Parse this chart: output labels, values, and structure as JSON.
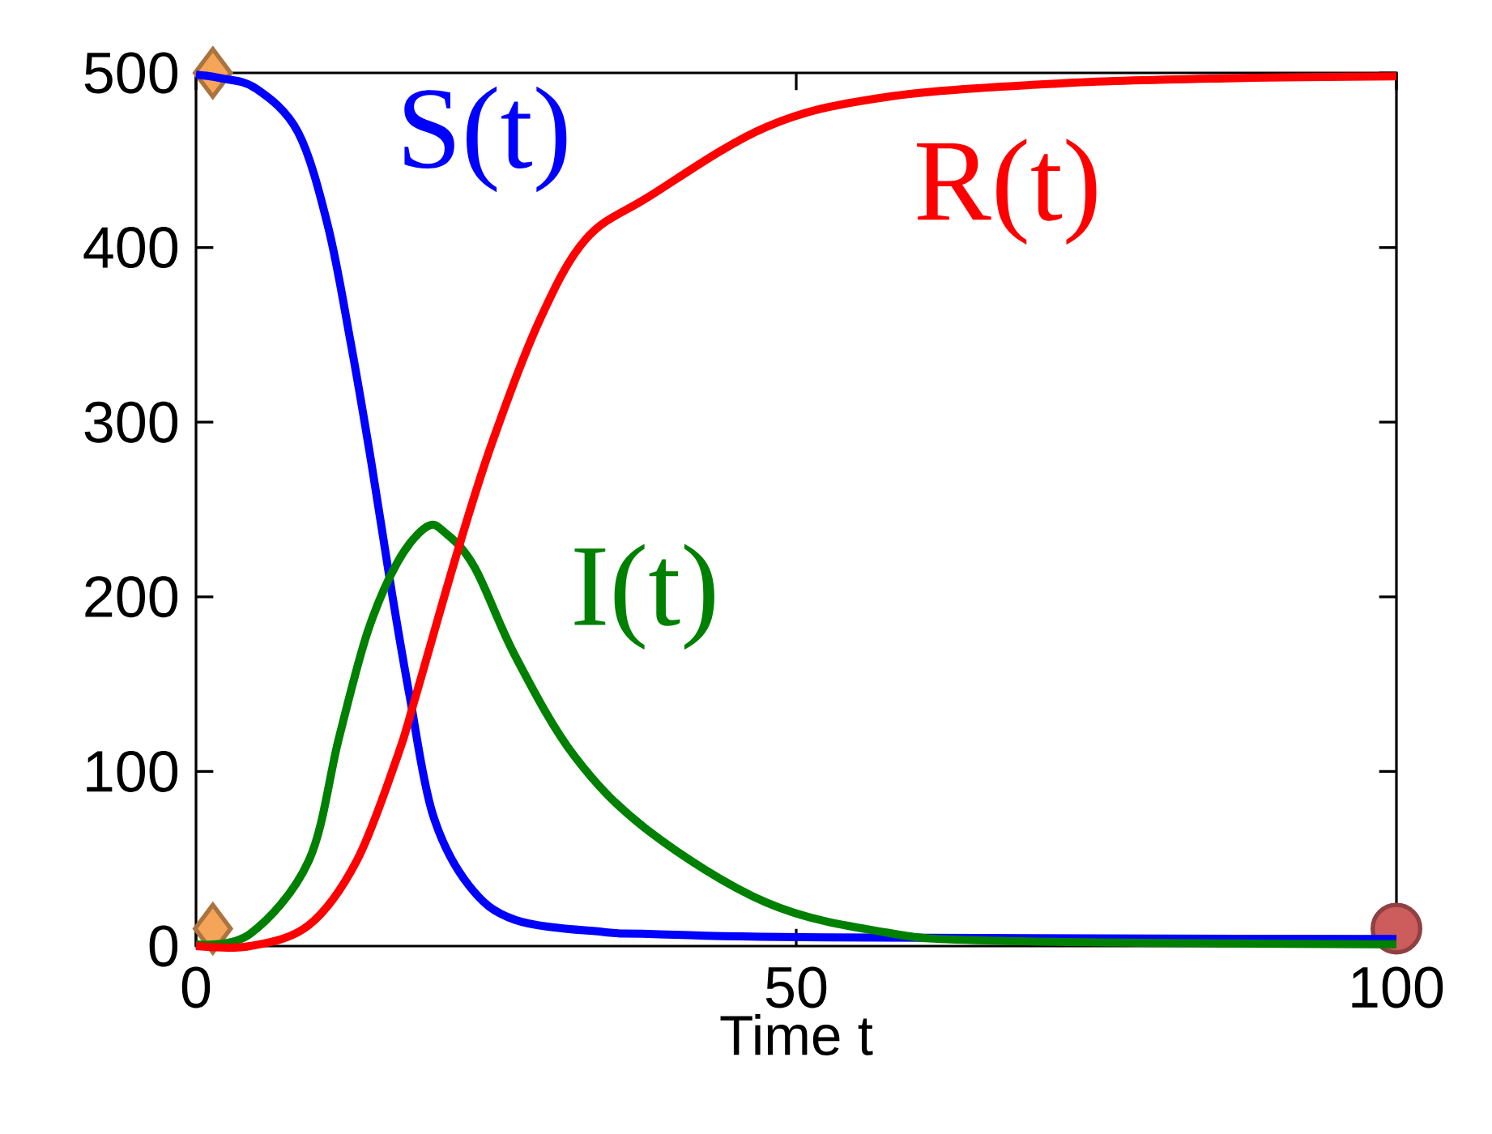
{
  "chart_data": {
    "type": "line",
    "xlabel": "Time t",
    "xlim": [
      0,
      100
    ],
    "ylim": [
      0,
      500
    ],
    "xticks": [
      0,
      50,
      100
    ],
    "yticks": [
      0,
      100,
      200,
      300,
      400,
      500
    ],
    "grid": false,
    "legend": false,
    "line_style": "solid",
    "series": [
      {
        "name": "S(t)",
        "color": "#0000ff",
        "x": [
          0,
          2,
          5,
          8.5,
          11,
          12.9,
          14.6,
          16.3,
          17.8,
          19.7,
          22.7,
          26.6,
          34,
          37.7,
          52.4,
          100
        ],
        "values": [
          499,
          497,
          491,
          466,
          412,
          345,
          277,
          203,
          143,
          76,
          35,
          15,
          8,
          7,
          5,
          4
        ]
      },
      {
        "name": "I(t)",
        "color": "#008000",
        "x": [
          0,
          4.5,
          9.4,
          11.9,
          14.3,
          16.8,
          19.2,
          20.7,
          23.2,
          26.6,
          31.5,
          37.7,
          47.5,
          57.3,
          67,
          100
        ],
        "values": [
          1,
          7,
          49,
          119,
          180,
          220,
          240,
          237,
          217,
          166,
          109,
          66,
          25,
          8,
          3,
          1
        ]
      },
      {
        "name": "R(t)",
        "color": "#ff0000",
        "x": [
          0,
          4.5,
          9.4,
          13.4,
          16.8,
          18.3,
          21.7,
          24.6,
          28.6,
          32.5,
          37.7,
          47.5,
          57.3,
          72,
          86.7,
          100
        ],
        "values": [
          0,
          0,
          12,
          49,
          109,
          143,
          224,
          287,
          358,
          405,
          429,
          469,
          486,
          494,
          497,
          498
        ]
      },
      {
        "type": "scatter",
        "marker": "diamond",
        "color": "#f5a55a",
        "x": [
          1.4,
          1.4
        ],
        "values": [
          500,
          10
        ]
      },
      {
        "type": "scatter",
        "marker": "circle",
        "color": "#cd5c5c",
        "x": [
          100
        ],
        "values": [
          10
        ]
      }
    ]
  }
}
